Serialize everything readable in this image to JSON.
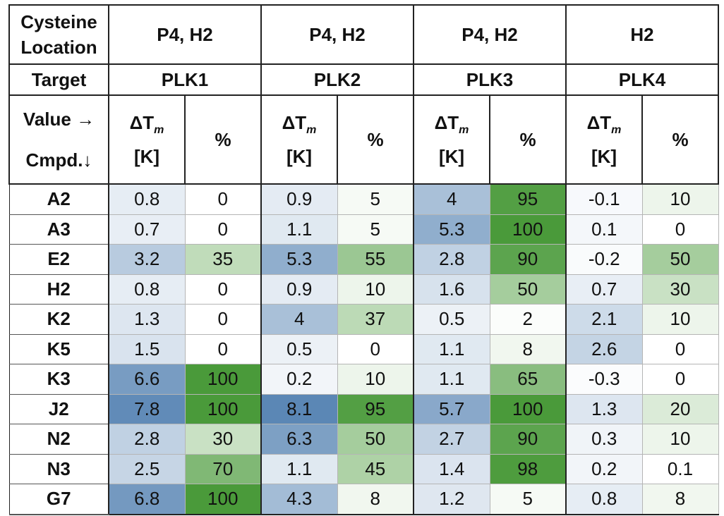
{
  "header": {
    "cysteine_label": [
      "Cysteine",
      "Location"
    ],
    "target_label": "Target",
    "value_label": "Value →",
    "cmpd_label": "Cmpd.↓",
    "locations": [
      "P4, H2",
      "P4, H2",
      "P4, H2",
      "H2"
    ],
    "targets": [
      "PLK1",
      "PLK2",
      "PLK3",
      "PLK4"
    ],
    "dtm_symbol": "ΔT",
    "dtm_sub": "m",
    "dtm_unit": "[K]",
    "pct_label": "%"
  },
  "rows": [
    {
      "cmpd": "A2",
      "values": [
        "0.8",
        "0",
        "0.9",
        "5",
        "4",
        "95",
        "-0.1",
        "10"
      ]
    },
    {
      "cmpd": "A3",
      "values": [
        "0.7",
        "0",
        "1.1",
        "5",
        "5.3",
        "100",
        "0.1",
        "0"
      ]
    },
    {
      "cmpd": "E2",
      "values": [
        "3.2",
        "35",
        "5.3",
        "55",
        "2.8",
        "90",
        "-0.2",
        "50"
      ]
    },
    {
      "cmpd": "H2",
      "values": [
        "0.8",
        "0",
        "0.9",
        "10",
        "1.6",
        "50",
        "0.7",
        "30"
      ]
    },
    {
      "cmpd": "K2",
      "values": [
        "1.3",
        "0",
        "4",
        "37",
        "0.5",
        "2",
        "2.1",
        "10"
      ]
    },
    {
      "cmpd": "K5",
      "values": [
        "1.5",
        "0",
        "0.5",
        "0",
        "1.1",
        "8",
        "2.6",
        "0"
      ]
    },
    {
      "cmpd": "K3",
      "values": [
        "6.6",
        "100",
        "0.2",
        "10",
        "1.1",
        "65",
        "-0.3",
        "0"
      ]
    },
    {
      "cmpd": "J2",
      "values": [
        "7.8",
        "100",
        "8.1",
        "95",
        "5.7",
        "100",
        "1.3",
        "20"
      ]
    },
    {
      "cmpd": "N2",
      "values": [
        "2.8",
        "30",
        "6.3",
        "50",
        "2.7",
        "90",
        "0.3",
        "10"
      ]
    },
    {
      "cmpd": "N3",
      "values": [
        "2.5",
        "70",
        "1.1",
        "45",
        "1.4",
        "98",
        "0.2",
        "0.1"
      ]
    },
    {
      "cmpd": "G7",
      "values": [
        "6.8",
        "100",
        "4.3",
        "8",
        "1.2",
        "5",
        "0.8",
        "8"
      ]
    }
  ],
  "colors": {
    "dtm_scale_low": "#ffffff",
    "dtm_scale_high": "#5b87b5",
    "pct_scale_low": "#ffffff",
    "pct_scale_high": "#4a9a3a",
    "border": "#222222"
  }
}
